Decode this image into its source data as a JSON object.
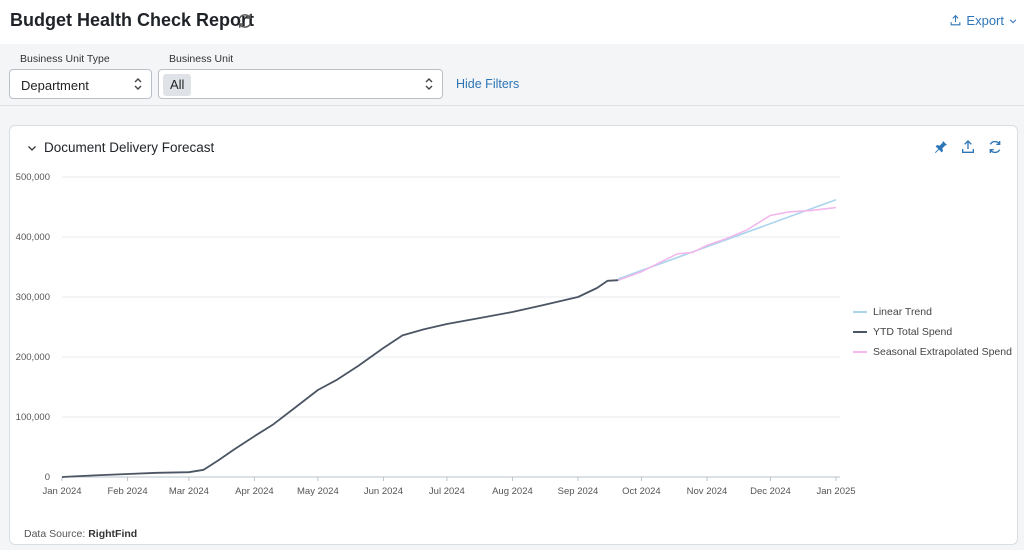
{
  "header": {
    "title": "Budget Health Check Report",
    "export_label": "Export"
  },
  "filters": {
    "unit_type_label": "Business Unit Type",
    "unit_type_value": "Department",
    "unit_label": "Business Unit",
    "unit_value": "All",
    "hide_filters_label": "Hide Filters"
  },
  "card": {
    "title": "Document Delivery Forecast",
    "source_prefix": "Data Source: ",
    "source_name": "RightFind"
  },
  "colors": {
    "linear_trend": "#a9d4ec",
    "ytd_spend": "#4b5563",
    "seasonal": "#f2b8ec",
    "link": "#2e75b6"
  },
  "chart_data": {
    "type": "line",
    "ylim": [
      0,
      500000
    ],
    "yticks": [
      0,
      100000,
      200000,
      300000,
      400000,
      500000
    ],
    "ytick_labels": [
      "0",
      "100,000",
      "200,000",
      "300,000",
      "400,000",
      "500,000"
    ],
    "xlim": [
      "2024-01-01",
      "2025-01-01"
    ],
    "xticks": [
      "2024-01-01",
      "2024-02-01",
      "2024-03-01",
      "2024-04-01",
      "2024-05-01",
      "2024-06-01",
      "2024-07-01",
      "2024-08-01",
      "2024-09-01",
      "2024-10-01",
      "2024-11-01",
      "2024-12-01",
      "2025-01-01"
    ],
    "xtick_labels": [
      "Jan 2024",
      "Feb 2024",
      "Mar 2024",
      "Apr 2024",
      "May 2024",
      "Jun 2024",
      "Jul 2024",
      "Aug 2024",
      "Sep 2024",
      "Oct 2024",
      "Nov 2024",
      "Dec 2024",
      "Jan 2025"
    ],
    "grid": true,
    "legend_placement": "right",
    "series": [
      {
        "name": "Linear Trend",
        "color": "#a9d4ec",
        "points": [
          [
            "2024-09-20",
            330000
          ],
          [
            "2025-01-01",
            462000
          ]
        ]
      },
      {
        "name": "YTD Total Spend",
        "color": "#4b5563",
        "points": [
          [
            "2024-01-01",
            0
          ],
          [
            "2024-01-15",
            2500
          ],
          [
            "2024-02-01",
            5000
          ],
          [
            "2024-02-15",
            7000
          ],
          [
            "2024-03-01",
            8000
          ],
          [
            "2024-03-08",
            12000
          ],
          [
            "2024-03-15",
            28000
          ],
          [
            "2024-03-22",
            45000
          ],
          [
            "2024-04-01",
            68000
          ],
          [
            "2024-04-10",
            88000
          ],
          [
            "2024-04-20",
            115000
          ],
          [
            "2024-05-01",
            145000
          ],
          [
            "2024-05-10",
            162000
          ],
          [
            "2024-05-20",
            185000
          ],
          [
            "2024-06-01",
            215000
          ],
          [
            "2024-06-10",
            236000
          ],
          [
            "2024-06-20",
            246000
          ],
          [
            "2024-07-01",
            255000
          ],
          [
            "2024-07-15",
            264000
          ],
          [
            "2024-08-01",
            275000
          ],
          [
            "2024-08-15",
            286000
          ],
          [
            "2024-09-01",
            300000
          ],
          [
            "2024-09-10",
            315000
          ],
          [
            "2024-09-15",
            327000
          ],
          [
            "2024-09-20",
            328000
          ]
        ]
      },
      {
        "name": "Seasonal Extrapolated Spend",
        "color": "#f2b8ec",
        "points": [
          [
            "2024-09-20",
            328000
          ],
          [
            "2024-10-01",
            342000
          ],
          [
            "2024-10-10",
            358000
          ],
          [
            "2024-10-18",
            372000
          ],
          [
            "2024-10-25",
            374000
          ],
          [
            "2024-11-01",
            386000
          ],
          [
            "2024-11-10",
            397000
          ],
          [
            "2024-11-20",
            412000
          ],
          [
            "2024-12-01",
            436000
          ],
          [
            "2024-12-10",
            442000
          ],
          [
            "2024-12-20",
            444000
          ],
          [
            "2025-01-01",
            449000
          ]
        ]
      }
    ]
  }
}
